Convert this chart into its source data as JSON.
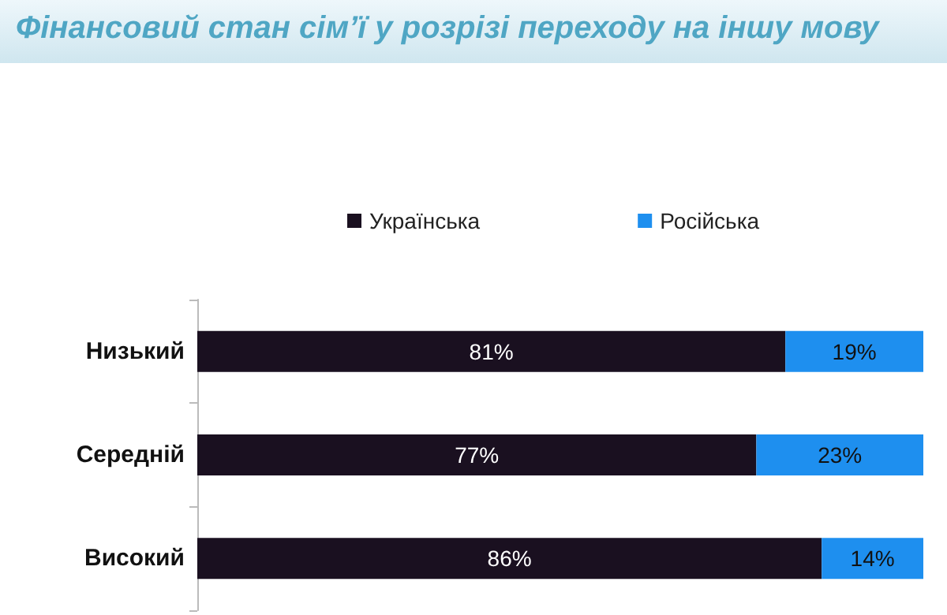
{
  "chart_data": {
    "type": "bar",
    "orientation": "horizontal",
    "stacked": true,
    "title": "Фінансовий стан сім’ї у розрізі переходу на іншу мову",
    "categories": [
      "Низький",
      "Середній",
      "Високий"
    ],
    "series": [
      {
        "name": "Українська",
        "color": "#1a1020",
        "values": [
          81,
          77,
          86
        ],
        "value_labels": [
          "81%",
          "77%",
          "86%"
        ]
      },
      {
        "name": "Російська",
        "color": "#1e8fef",
        "values": [
          19,
          23,
          14
        ],
        "value_labels": [
          "19%",
          "23%",
          "14%"
        ]
      }
    ],
    "legend": "top",
    "tick_labels": "y"
  }
}
